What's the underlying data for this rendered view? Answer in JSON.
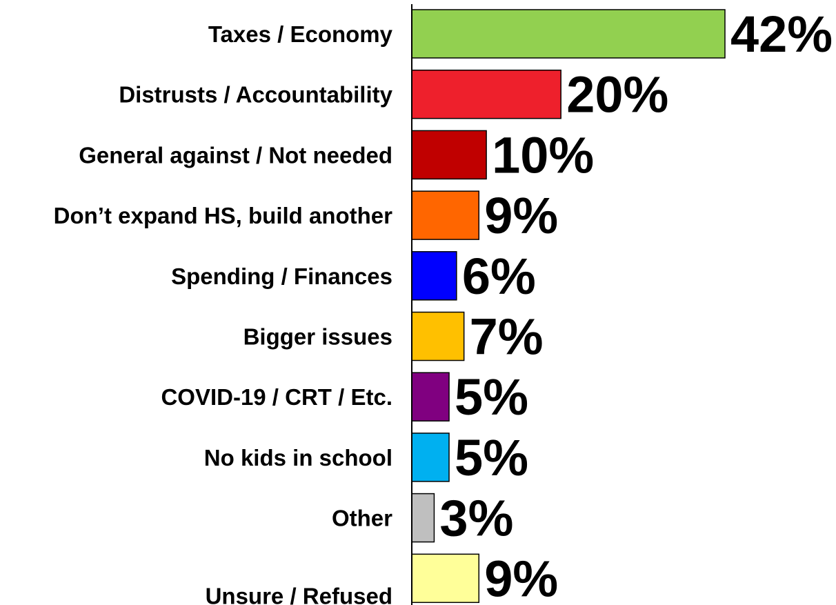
{
  "chart_data": {
    "type": "bar",
    "orientation": "horizontal",
    "title": "",
    "xlabel": "",
    "ylabel": "",
    "xlim": [
      0,
      42
    ],
    "grid": false,
    "legend": "none",
    "value_suffix": "%",
    "categories": [
      "Taxes / Economy",
      "Distrusts / Accountability",
      "General against / Not needed",
      "Don’t expand HS, build another",
      "Spending / Finances",
      "Bigger issues",
      "COVID-19 / CRT / Etc.",
      "No kids in school",
      "Other",
      "Unsure / Refused"
    ],
    "values": [
      42,
      20,
      10,
      9,
      6,
      7,
      5,
      5,
      3,
      9
    ],
    "value_labels": [
      "42%",
      "20%",
      "10%",
      "9%",
      "6%",
      "7%",
      "5%",
      "5%",
      "3%",
      "9%"
    ],
    "colors": [
      "#92D050",
      "#EE202C",
      "#C00000",
      "#FF6600",
      "#0000FF",
      "#FFC000",
      "#800080",
      "#00B0F0",
      "#BFBFBF",
      "#FFFF99"
    ]
  }
}
